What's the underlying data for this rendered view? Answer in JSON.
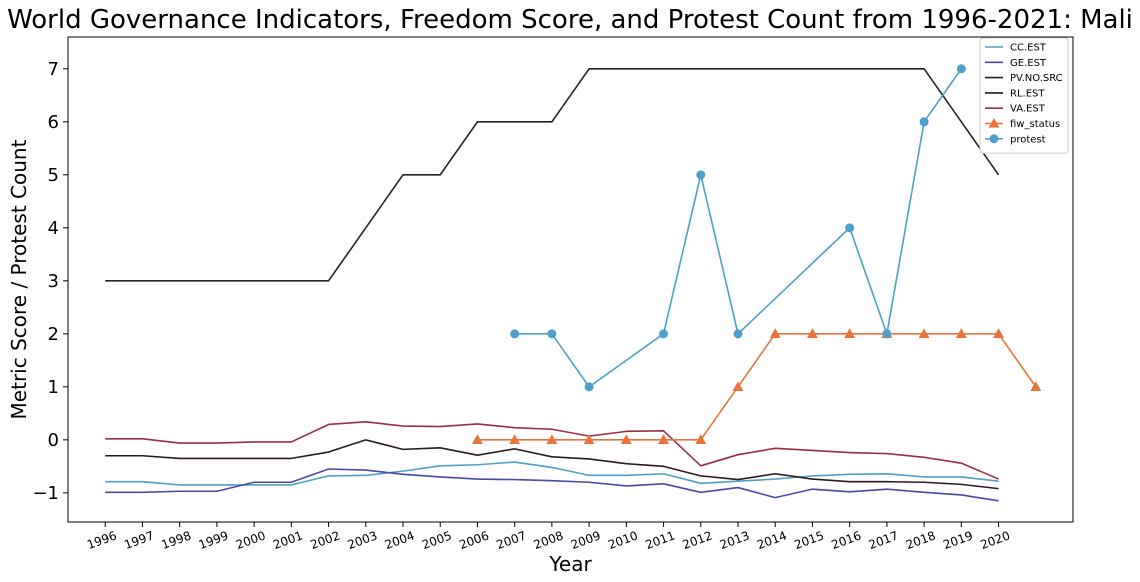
{
  "chart_data": {
    "type": "line",
    "title": "World Governance Indicators, Freedom Score, and Protest Count from 1996-2021: Mali",
    "xlabel": "Year",
    "ylabel": "Metric Score / Protest Count",
    "xlim": [
      1995,
      2022
    ],
    "ylim": [
      -1.55,
      7.6
    ],
    "yticks": [
      -1,
      0,
      1,
      2,
      3,
      4,
      5,
      6,
      7
    ],
    "ytick_labels": [
      "−1",
      "0",
      "1",
      "2",
      "3",
      "4",
      "5",
      "6",
      "7"
    ],
    "xticks": [
      "1996",
      "1997",
      "1998",
      "1999",
      "2000",
      "2001",
      "2002",
      "2003",
      "2004",
      "2005",
      "2006",
      "2007",
      "2008",
      "2009",
      "2010",
      "2011",
      "2012",
      "2013",
      "2014",
      "2015",
      "2016",
      "2017",
      "2018",
      "2019",
      "2020"
    ],
    "grid": false,
    "legend_position": "top-right",
    "series": [
      {
        "name": "CC.EST",
        "color": "#4e9fc9",
        "marker": "none",
        "x": [
          1996,
          1997,
          1998,
          1999,
          2000,
          2001,
          2002,
          2003,
          2004,
          2005,
          2006,
          2007,
          2008,
          2009,
          2010,
          2011,
          2012,
          2013,
          2014,
          2015,
          2016,
          2017,
          2018,
          2019,
          2020
        ],
        "y": [
          -0.79,
          -0.79,
          -0.85,
          -0.85,
          -0.85,
          -0.85,
          -0.68,
          -0.67,
          -0.59,
          -0.49,
          -0.47,
          -0.42,
          -0.52,
          -0.67,
          -0.67,
          -0.64,
          -0.82,
          -0.78,
          -0.74,
          -0.68,
          -0.65,
          -0.64,
          -0.7,
          -0.7,
          -0.78
        ]
      },
      {
        "name": "GE.EST",
        "color": "#4a4aa6",
        "marker": "none",
        "x": [
          1996,
          1997,
          1998,
          1999,
          2000,
          2001,
          2002,
          2003,
          2004,
          2005,
          2006,
          2007,
          2008,
          2009,
          2010,
          2011,
          2012,
          2013,
          2014,
          2015,
          2016,
          2017,
          2018,
          2019,
          2020
        ],
        "y": [
          -0.99,
          -0.99,
          -0.97,
          -0.97,
          -0.8,
          -0.8,
          -0.55,
          -0.57,
          -0.65,
          -0.7,
          -0.74,
          -0.75,
          -0.77,
          -0.8,
          -0.87,
          -0.83,
          -0.99,
          -0.9,
          -1.09,
          -0.93,
          -0.98,
          -0.93,
          -0.99,
          -1.04,
          -1.15
        ]
      },
      {
        "name": "PV.NO.SRC",
        "color": "#24202e",
        "marker": "none",
        "x": [
          1996,
          1997,
          1998,
          1999,
          2000,
          2001,
          2002,
          2003,
          2004,
          2005,
          2006,
          2007,
          2008,
          2009,
          2010,
          2011,
          2012,
          2013,
          2014,
          2015,
          2016,
          2017,
          2018,
          2019,
          2020
        ],
        "y": [
          3,
          3,
          3,
          3,
          3,
          3,
          3,
          4,
          5,
          5,
          6,
          6,
          6,
          7,
          7,
          7,
          7,
          7,
          7,
          7,
          7,
          7,
          7,
          6,
          5
        ]
      },
      {
        "name": "RL.EST",
        "color": "#2c1a1c",
        "marker": "none",
        "x": [
          1996,
          1997,
          1998,
          1999,
          2000,
          2001,
          2002,
          2003,
          2004,
          2005,
          2006,
          2007,
          2008,
          2009,
          2010,
          2011,
          2012,
          2013,
          2014,
          2015,
          2016,
          2017,
          2018,
          2019,
          2020
        ],
        "y": [
          -0.3,
          -0.3,
          -0.35,
          -0.35,
          -0.35,
          -0.35,
          -0.23,
          0.0,
          -0.18,
          -0.15,
          -0.29,
          -0.17,
          -0.32,
          -0.36,
          -0.45,
          -0.5,
          -0.68,
          -0.75,
          -0.64,
          -0.74,
          -0.79,
          -0.79,
          -0.8,
          -0.84,
          -0.92
        ]
      },
      {
        "name": "VA.EST",
        "color": "#9b2d45",
        "marker": "none",
        "x": [
          1996,
          1997,
          1998,
          1999,
          2000,
          2001,
          2002,
          2003,
          2004,
          2005,
          2006,
          2007,
          2008,
          2009,
          2010,
          2011,
          2012,
          2013,
          2014,
          2015,
          2016,
          2017,
          2018,
          2019,
          2020
        ],
        "y": [
          0.02,
          0.02,
          -0.06,
          -0.06,
          -0.04,
          -0.04,
          0.29,
          0.34,
          0.26,
          0.25,
          0.3,
          0.23,
          0.2,
          0.07,
          0.16,
          0.17,
          -0.49,
          -0.28,
          -0.16,
          -0.2,
          -0.24,
          -0.26,
          -0.33,
          -0.44,
          -0.74
        ]
      },
      {
        "name": "fiw_status",
        "color": "#e8743b",
        "marker": "triangle",
        "x": [
          2006,
          2007,
          2008,
          2009,
          2010,
          2011,
          2012,
          2013,
          2014,
          2015,
          2016,
          2017,
          2018,
          2019,
          2020,
          2021
        ],
        "y": [
          0,
          0,
          0,
          0,
          0,
          0,
          0,
          1,
          2,
          2,
          2,
          2,
          2,
          2,
          2,
          1
        ]
      },
      {
        "name": "protest",
        "color": "#4e9fc9",
        "marker": "circle",
        "x": [
          2007,
          2008,
          2009,
          2011,
          2012,
          2013,
          2016,
          2017,
          2018,
          2019
        ],
        "y": [
          2,
          2,
          1,
          2,
          5,
          2,
          4,
          2,
          6,
          7
        ]
      }
    ]
  }
}
